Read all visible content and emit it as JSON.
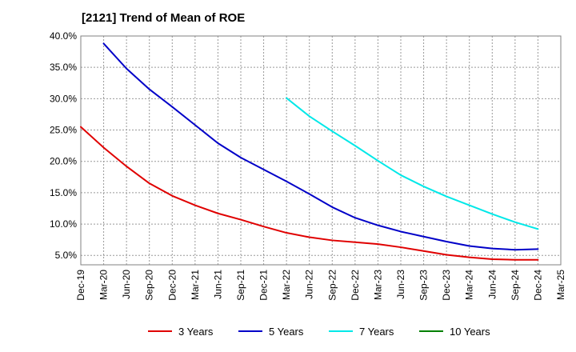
{
  "title": "[2121]  Trend of Mean of ROE",
  "chart_data": {
    "type": "line",
    "title": "[2121]  Trend of Mean of ROE",
    "xlabel": "",
    "ylabel": "",
    "ylim": [
      3.5,
      40.0
    ],
    "yticks": [
      5.0,
      10.0,
      15.0,
      20.0,
      25.0,
      30.0,
      35.0,
      40.0
    ],
    "ytick_labels": [
      "5.0%",
      "10.0%",
      "15.0%",
      "20.0%",
      "25.0%",
      "30.0%",
      "35.0%",
      "40.0%"
    ],
    "categories": [
      "Dec-19",
      "Mar-20",
      "Jun-20",
      "Sep-20",
      "Dec-20",
      "Mar-21",
      "Jun-21",
      "Sep-21",
      "Dec-21",
      "Mar-22",
      "Jun-22",
      "Sep-22",
      "Dec-22",
      "Mar-23",
      "Jun-23",
      "Sep-23",
      "Dec-23",
      "Mar-24",
      "Jun-24",
      "Sep-24",
      "Dec-24",
      "Mar-25"
    ],
    "grid": true,
    "legend_position": "bottom",
    "series": [
      {
        "name": "3 Years",
        "color": "#e00000",
        "values": [
          25.5,
          22.2,
          19.2,
          16.5,
          14.5,
          13.0,
          11.7,
          10.7,
          9.6,
          8.6,
          7.9,
          7.4,
          7.1,
          6.8,
          6.3,
          5.7,
          5.1,
          4.7,
          4.4,
          4.3,
          4.3,
          null
        ]
      },
      {
        "name": "5 Years",
        "color": "#0000c8",
        "values": [
          null,
          38.8,
          34.8,
          31.5,
          28.7,
          25.8,
          22.9,
          20.6,
          18.7,
          16.8,
          14.8,
          12.7,
          11.0,
          9.8,
          8.8,
          8.0,
          7.2,
          6.5,
          6.1,
          5.9,
          6.0,
          null
        ]
      },
      {
        "name": "7 Years",
        "color": "#00e8e8",
        "values": [
          null,
          null,
          null,
          null,
          null,
          null,
          null,
          null,
          null,
          30.1,
          27.2,
          24.8,
          22.5,
          20.1,
          17.8,
          16.0,
          14.4,
          13.0,
          11.6,
          10.3,
          9.2,
          null
        ]
      },
      {
        "name": "10 Years",
        "color": "#008000",
        "values": [
          null,
          null,
          null,
          null,
          null,
          null,
          null,
          null,
          null,
          null,
          null,
          null,
          null,
          null,
          null,
          null,
          null,
          null,
          null,
          null,
          null,
          null
        ]
      }
    ]
  }
}
